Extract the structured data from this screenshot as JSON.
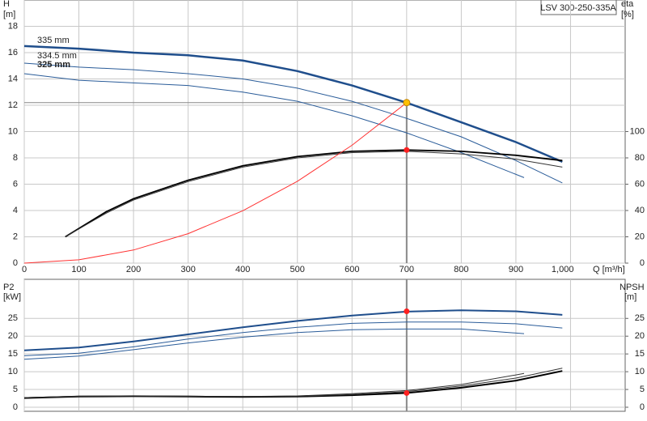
{
  "chart_data": [
    {
      "type": "line",
      "title": "LSV 300-250-335A",
      "ylabel": "H",
      "yunit": "[m]",
      "y2label": "eta",
      "y2unit": "[%]",
      "xlabel": "Q [m³/h]",
      "xlim": [
        0,
        1100
      ],
      "xticks": [
        0,
        100,
        200,
        300,
        400,
        500,
        600,
        700,
        800,
        900,
        {
          "value": 1000,
          "label": "1,000"
        }
      ],
      "ylim": [
        0,
        20
      ],
      "yticks": [
        0,
        2,
        4,
        6,
        8,
        10,
        12,
        14,
        16,
        18
      ],
      "y2lim": [
        0,
        200
      ],
      "y2ticks": [
        0,
        20,
        40,
        60,
        80,
        100
      ],
      "grid": true,
      "series": [
        {
          "name": "335 mm",
          "color": "#1f4e8c",
          "width": 2.5,
          "x": [
            0,
            100,
            200,
            300,
            400,
            500,
            600,
            700,
            800,
            900,
            985
          ],
          "values": [
            16.5,
            16.3,
            16.0,
            15.8,
            15.4,
            14.6,
            13.5,
            12.2,
            10.7,
            9.2,
            7.7
          ]
        },
        {
          "name": "334.5 mm",
          "color": "#2a5c99",
          "width": 1,
          "x": [
            0,
            100,
            200,
            300,
            400,
            500,
            600,
            700,
            800,
            900,
            985
          ],
          "values": [
            15.2,
            14.9,
            14.7,
            14.4,
            14.0,
            13.3,
            12.3,
            11.0,
            9.6,
            7.8,
            6.1
          ]
        },
        {
          "name": "325 mm",
          "color": "#2a5c99",
          "width": 1,
          "x": [
            0,
            100,
            200,
            300,
            400,
            500,
            600,
            700,
            800,
            915
          ],
          "values": [
            14.4,
            13.9,
            13.7,
            13.5,
            13.0,
            12.3,
            11.2,
            9.9,
            8.4,
            6.5
          ]
        },
        {
          "color": "#000000",
          "width": 1.8,
          "axis": "y2",
          "x": [
            75,
            150,
            200,
            300,
            400,
            500,
            600,
            700,
            800,
            900,
            985
          ],
          "values": [
            20,
            39,
            49,
            63,
            74,
            81,
            85,
            86,
            85,
            82,
            78
          ]
        },
        {
          "color": "#333333",
          "width": 1,
          "axis": "y2",
          "x": [
            75,
            150,
            200,
            300,
            400,
            500,
            600,
            700,
            800,
            900,
            985
          ],
          "values": [
            20,
            38,
            48,
            62,
            73,
            80,
            84,
            85,
            83,
            79,
            73
          ]
        },
        {
          "color": "#ff3333",
          "width": 1,
          "x": [
            0,
            100,
            200,
            300,
            400,
            500,
            600,
            700
          ],
          "values": [
            0,
            0.25,
            1.0,
            2.24,
            3.98,
            6.22,
            8.96,
            12.2
          ]
        }
      ],
      "duty_point": {
        "x": 700,
        "h": 12.2,
        "eta": 86
      }
    },
    {
      "type": "line",
      "ylabel": "P2",
      "yunit": "[kW]",
      "y2label": "NPSH",
      "y2unit": "[m]",
      "xlim": [
        0,
        1100
      ],
      "xticks": [
        0,
        100,
        200,
        300,
        400,
        500,
        600,
        700,
        800,
        900,
        1000
      ],
      "ylim": [
        0,
        36
      ],
      "yticks": [
        0,
        5,
        10,
        15,
        20,
        25
      ],
      "y2lim": [
        0,
        36
      ],
      "y2ticks": [
        0,
        5,
        10,
        15,
        20,
        25
      ],
      "grid": true,
      "series": [
        {
          "color": "#1f4e8c",
          "width": 2,
          "x": [
            0,
            100,
            200,
            300,
            400,
            500,
            600,
            700,
            800,
            900,
            985
          ],
          "values": [
            16,
            16.8,
            18.5,
            20.5,
            22.5,
            24.3,
            25.8,
            26.9,
            27.3,
            27,
            26
          ]
        },
        {
          "color": "#2a5c99",
          "width": 1,
          "x": [
            0,
            100,
            200,
            300,
            400,
            500,
            600,
            700,
            800,
            900,
            985
          ],
          "values": [
            14.5,
            15.2,
            17,
            19.2,
            21,
            22.5,
            23.6,
            24,
            24,
            23.5,
            22.3
          ]
        },
        {
          "color": "#2a5c99",
          "width": 1,
          "x": [
            0,
            100,
            200,
            300,
            400,
            500,
            600,
            700,
            800,
            915
          ],
          "values": [
            13.5,
            14.4,
            16.2,
            18.1,
            19.7,
            21,
            21.8,
            22,
            22,
            20.7
          ]
        },
        {
          "color": "#000000",
          "width": 2,
          "axis": "y2",
          "x": [
            0,
            100,
            200,
            300,
            400,
            500,
            600,
            700,
            800,
            900,
            985
          ],
          "values": [
            2.6,
            3,
            3.1,
            3,
            2.9,
            3,
            3.4,
            4,
            5.5,
            7.5,
            10.2
          ]
        },
        {
          "color": "#333333",
          "width": 1,
          "axis": "y2",
          "x": [
            0,
            100,
            200,
            300,
            400,
            500,
            600,
            700,
            800,
            900,
            985
          ],
          "values": [
            2.7,
            3.1,
            3.2,
            3.1,
            3,
            3.1,
            3.6,
            4.4,
            6,
            8.2,
            11
          ]
        },
        {
          "color": "#333333",
          "width": 1,
          "axis": "y2",
          "x": [
            0,
            100,
            200,
            300,
            400,
            500,
            600,
            700,
            800,
            915
          ],
          "values": [
            2.7,
            3.1,
            3.2,
            3.1,
            3,
            3.2,
            3.8,
            4.7,
            6.4,
            9.5
          ]
        }
      ],
      "duty_point": {
        "x": 700,
        "p2": 27,
        "npsh": 4
      }
    }
  ]
}
